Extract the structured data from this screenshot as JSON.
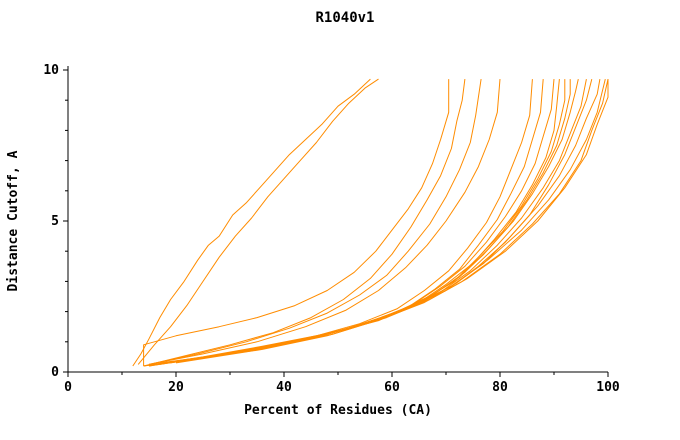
{
  "chart_data": {
    "type": "line",
    "title": "R1040v1",
    "xlabel": "Percent of Residues (CA)",
    "ylabel": "Distance Cutoff, A",
    "xlim": [
      0,
      100
    ],
    "ylim": [
      0,
      10
    ],
    "x_ticks": [
      0,
      20,
      40,
      60,
      80,
      100
    ],
    "x_minor": [
      10,
      30,
      50,
      70,
      90
    ],
    "y_ticks": [
      0,
      5,
      10
    ],
    "y_minor": [
      1,
      2,
      3,
      4,
      6,
      7,
      8,
      9
    ],
    "grid": false,
    "legend": "none",
    "line_color": "#ff8c00",
    "axis_color": "#000000",
    "series": [
      {
        "points": [
          [
            12,
            0.2
          ],
          [
            13.5,
            0.6
          ],
          [
            15,
            1.1
          ],
          [
            17,
            1.8
          ],
          [
            19,
            2.4
          ],
          [
            21.5,
            3.0
          ],
          [
            24,
            3.7
          ],
          [
            26,
            4.2
          ],
          [
            28,
            4.5
          ],
          [
            30.5,
            5.2
          ],
          [
            33,
            5.6
          ],
          [
            36,
            6.2
          ],
          [
            38.5,
            6.7
          ],
          [
            41,
            7.2
          ],
          [
            44,
            7.7
          ],
          [
            47,
            8.2
          ],
          [
            50,
            8.8
          ],
          [
            53,
            9.2
          ],
          [
            56,
            9.7
          ]
        ]
      },
      {
        "points": [
          [
            13,
            0.25
          ],
          [
            16,
            0.9
          ],
          [
            19,
            1.5
          ],
          [
            22,
            2.2
          ],
          [
            25,
            3.0
          ],
          [
            28,
            3.8
          ],
          [
            31,
            4.5
          ],
          [
            34,
            5.1
          ],
          [
            37,
            5.8
          ],
          [
            40,
            6.4
          ],
          [
            43,
            7.0
          ],
          [
            46,
            7.6
          ],
          [
            49,
            8.3
          ],
          [
            52,
            8.9
          ],
          [
            55,
            9.4
          ],
          [
            57.5,
            9.7
          ]
        ]
      },
      {
        "points": [
          [
            14,
            0.2
          ],
          [
            14,
            0.9
          ],
          [
            20,
            1.2
          ],
          [
            28,
            1.5
          ],
          [
            35,
            1.8
          ],
          [
            42,
            2.2
          ],
          [
            48,
            2.7
          ],
          [
            53,
            3.3
          ],
          [
            57,
            4.0
          ],
          [
            60,
            4.7
          ],
          [
            63,
            5.4
          ],
          [
            65.5,
            6.1
          ],
          [
            67.5,
            6.9
          ],
          [
            69,
            7.7
          ],
          [
            70.5,
            8.6
          ],
          [
            70.5,
            9.7
          ]
        ]
      },
      {
        "points": [
          [
            14,
            0.2
          ],
          [
            22,
            0.55
          ],
          [
            30,
            0.9
          ],
          [
            38,
            1.3
          ],
          [
            45,
            1.8
          ],
          [
            51,
            2.4
          ],
          [
            56,
            3.1
          ],
          [
            60,
            3.9
          ],
          [
            63.5,
            4.8
          ],
          [
            66.5,
            5.7
          ],
          [
            69,
            6.5
          ],
          [
            71,
            7.4
          ],
          [
            72,
            8.3
          ],
          [
            73,
            9.0
          ],
          [
            73.5,
            9.7
          ]
        ]
      },
      {
        "points": [
          [
            15,
            0.25
          ],
          [
            24,
            0.6
          ],
          [
            33,
            1.0
          ],
          [
            41,
            1.45
          ],
          [
            48,
            1.95
          ],
          [
            54,
            2.55
          ],
          [
            59,
            3.2
          ],
          [
            63,
            4.0
          ],
          [
            67,
            4.9
          ],
          [
            70,
            5.8
          ],
          [
            72.5,
            6.7
          ],
          [
            74.5,
            7.6
          ],
          [
            75.5,
            8.5
          ],
          [
            76.5,
            9.7
          ]
        ]
      },
      {
        "points": [
          [
            15,
            0.25
          ],
          [
            25,
            0.6
          ],
          [
            35,
            1.0
          ],
          [
            44,
            1.5
          ],
          [
            51.5,
            2.05
          ],
          [
            57.5,
            2.7
          ],
          [
            62.5,
            3.45
          ],
          [
            66.5,
            4.2
          ],
          [
            70,
            5.0
          ],
          [
            73.5,
            5.95
          ],
          [
            76,
            6.8
          ],
          [
            78,
            7.7
          ],
          [
            79.5,
            8.6
          ],
          [
            80,
            9.7
          ]
        ]
      },
      {
        "points": [
          [
            14,
            0.2
          ],
          [
            25,
            0.5
          ],
          [
            36,
            0.85
          ],
          [
            46,
            1.2
          ],
          [
            54,
            1.6
          ],
          [
            61,
            2.1
          ],
          [
            66,
            2.7
          ],
          [
            70.5,
            3.35
          ],
          [
            74,
            4.1
          ],
          [
            77.5,
            4.95
          ],
          [
            80,
            5.8
          ],
          [
            82,
            6.7
          ],
          [
            84,
            7.6
          ],
          [
            85.5,
            8.5
          ],
          [
            86,
            9.7
          ]
        ]
      },
      {
        "points": [
          [
            14,
            0.2
          ],
          [
            26,
            0.5
          ],
          [
            38,
            0.9
          ],
          [
            48,
            1.25
          ],
          [
            56,
            1.65
          ],
          [
            63,
            2.15
          ],
          [
            68,
            2.75
          ],
          [
            72.5,
            3.4
          ],
          [
            76,
            4.2
          ],
          [
            79.5,
            5.05
          ],
          [
            82,
            5.9
          ],
          [
            84.5,
            6.8
          ],
          [
            86,
            7.7
          ],
          [
            87.5,
            8.6
          ],
          [
            88,
            9.7
          ]
        ]
      },
      {
        "points": [
          [
            15,
            0.2
          ],
          [
            27,
            0.55
          ],
          [
            39,
            0.9
          ],
          [
            49,
            1.3
          ],
          [
            57.5,
            1.7
          ],
          [
            64,
            2.25
          ],
          [
            69,
            2.85
          ],
          [
            73.5,
            3.5
          ],
          [
            77.5,
            4.3
          ],
          [
            81,
            5.15
          ],
          [
            84,
            6.0
          ],
          [
            86.5,
            6.9
          ],
          [
            88,
            7.8
          ],
          [
            89.5,
            8.7
          ],
          [
            90,
            9.7
          ]
        ]
      },
      {
        "points": [
          [
            15,
            0.2
          ],
          [
            28,
            0.55
          ],
          [
            40,
            0.95
          ],
          [
            50,
            1.35
          ],
          [
            58,
            1.8
          ],
          [
            65,
            2.3
          ],
          [
            70,
            2.9
          ],
          [
            75,
            3.6
          ],
          [
            79,
            4.4
          ],
          [
            83,
            5.3
          ],
          [
            86,
            6.2
          ],
          [
            88.5,
            7.1
          ],
          [
            90,
            8.0
          ],
          [
            90.5,
            8.8
          ],
          [
            91,
            9.7
          ]
        ]
      },
      {
        "points": [
          [
            16,
            0.25
          ],
          [
            29,
            0.6
          ],
          [
            41,
            1.0
          ],
          [
            51,
            1.4
          ],
          [
            59,
            1.85
          ],
          [
            66,
            2.4
          ],
          [
            71.5,
            3.0
          ],
          [
            76,
            3.8
          ],
          [
            80.5,
            4.65
          ],
          [
            84,
            5.5
          ],
          [
            87,
            6.4
          ],
          [
            89.5,
            7.3
          ],
          [
            91,
            8.2
          ],
          [
            92,
            9.0
          ],
          [
            92,
            9.7
          ]
        ]
      },
      {
        "points": [
          [
            16,
            0.25
          ],
          [
            30,
            0.6
          ],
          [
            42,
            1.0
          ],
          [
            52,
            1.45
          ],
          [
            60,
            1.9
          ],
          [
            67,
            2.5
          ],
          [
            72.5,
            3.15
          ],
          [
            77,
            3.9
          ],
          [
            81.5,
            4.8
          ],
          [
            85,
            5.7
          ],
          [
            88,
            6.6
          ],
          [
            90.5,
            7.5
          ],
          [
            92,
            8.4
          ],
          [
            93,
            9.2
          ],
          [
            93,
            9.7
          ]
        ]
      },
      {
        "points": [
          [
            17,
            0.25
          ],
          [
            31,
            0.65
          ],
          [
            43,
            1.05
          ],
          [
            53,
            1.5
          ],
          [
            61,
            2.0
          ],
          [
            68,
            2.6
          ],
          [
            73.5,
            3.3
          ],
          [
            78,
            4.1
          ],
          [
            82.5,
            5.0
          ],
          [
            86,
            5.9
          ],
          [
            89,
            6.8
          ],
          [
            91.5,
            7.7
          ],
          [
            93,
            8.6
          ],
          [
            94,
            9.3
          ],
          [
            94.5,
            9.7
          ]
        ]
      },
      {
        "points": [
          [
            17,
            0.3
          ],
          [
            32,
            0.65
          ],
          [
            44,
            1.1
          ],
          [
            54,
            1.55
          ],
          [
            62,
            2.05
          ],
          [
            69,
            2.65
          ],
          [
            74.5,
            3.35
          ],
          [
            79.5,
            4.2
          ],
          [
            84,
            5.1
          ],
          [
            88,
            6.1
          ],
          [
            91,
            7.0
          ],
          [
            93,
            7.9
          ],
          [
            95,
            8.8
          ],
          [
            96,
            9.7
          ]
        ]
      },
      {
        "points": [
          [
            18,
            0.3
          ],
          [
            33,
            0.7
          ],
          [
            45,
            1.1
          ],
          [
            55,
            1.6
          ],
          [
            63,
            2.1
          ],
          [
            70,
            2.7
          ],
          [
            76,
            3.5
          ],
          [
            81,
            4.3
          ],
          [
            85.5,
            5.2
          ],
          [
            89,
            6.2
          ],
          [
            92,
            7.2
          ],
          [
            94,
            8.1
          ],
          [
            96,
            9.0
          ],
          [
            97,
            9.7
          ]
        ]
      },
      {
        "points": [
          [
            18,
            0.3
          ],
          [
            34,
            0.7
          ],
          [
            46,
            1.15
          ],
          [
            56,
            1.65
          ],
          [
            64,
            2.2
          ],
          [
            71,
            2.85
          ],
          [
            77,
            3.6
          ],
          [
            82,
            4.5
          ],
          [
            87,
            5.5
          ],
          [
            91,
            6.5
          ],
          [
            94,
            7.5
          ],
          [
            96,
            8.4
          ],
          [
            98,
            9.2
          ],
          [
            98.5,
            9.7
          ]
        ]
      },
      {
        "points": [
          [
            19,
            0.3
          ],
          [
            35,
            0.75
          ],
          [
            47,
            1.2
          ],
          [
            57,
            1.7
          ],
          [
            65,
            2.25
          ],
          [
            72,
            2.95
          ],
          [
            78,
            3.75
          ],
          [
            84,
            4.7
          ],
          [
            89,
            5.7
          ],
          [
            93,
            6.7
          ],
          [
            96,
            7.7
          ],
          [
            98,
            8.6
          ],
          [
            99.5,
            9.7
          ]
        ]
      },
      {
        "points": [
          [
            20,
            0.3
          ],
          [
            36,
            0.75
          ],
          [
            48,
            1.2
          ],
          [
            58,
            1.75
          ],
          [
            66,
            2.3
          ],
          [
            73,
            3.0
          ],
          [
            80,
            3.9
          ],
          [
            86,
            4.9
          ],
          [
            91,
            5.9
          ],
          [
            95,
            7.0
          ],
          [
            97,
            8.0
          ],
          [
            99,
            8.9
          ],
          [
            100,
            9.7
          ]
        ]
      },
      {
        "points": [
          [
            20,
            0.35
          ],
          [
            37,
            0.8
          ],
          [
            49,
            1.25
          ],
          [
            59,
            1.8
          ],
          [
            67,
            2.4
          ],
          [
            74,
            3.1
          ],
          [
            81,
            4.0
          ],
          [
            87,
            5.0
          ],
          [
            92,
            6.1
          ],
          [
            96,
            7.2
          ],
          [
            98,
            8.2
          ],
          [
            100,
            9.1
          ],
          [
            100,
            9.7
          ]
        ]
      }
    ]
  }
}
